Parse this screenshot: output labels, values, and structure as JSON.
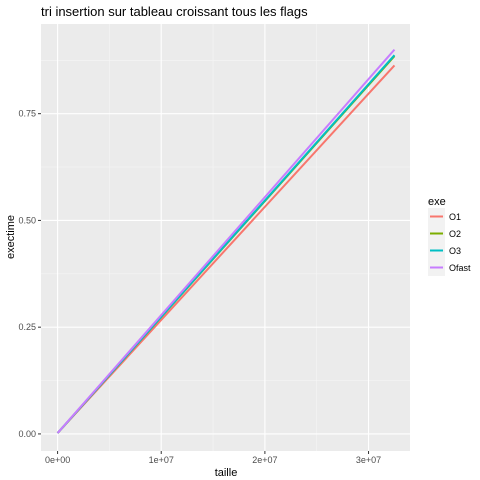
{
  "chart_data": {
    "type": "line",
    "title": "tri insertion sur tableau croissant tous les flags",
    "xlabel": "taille",
    "ylabel": "exectime",
    "xlim": [
      -1600000,
      34000000
    ],
    "ylim": [
      -0.04,
      0.96
    ],
    "x_ticks": [
      0,
      10000000,
      20000000,
      30000000
    ],
    "x_tick_labels": [
      "0e+00",
      "1e+07",
      "2e+07",
      "3e+07"
    ],
    "y_ticks": [
      0,
      0.25,
      0.5,
      0.75
    ],
    "y_tick_labels": [
      "0.00",
      "0.25",
      "0.50",
      "0.75"
    ],
    "grid": true,
    "legend": {
      "title": "exe",
      "position": "right"
    },
    "series": [
      {
        "name": "O1",
        "color": "#F8766D",
        "x": [
          0,
          32500000
        ],
        "y": [
          0.002,
          0.863
        ]
      },
      {
        "name": "O2",
        "color": "#7CAE00",
        "x": [
          0,
          32500000
        ],
        "y": [
          0.002,
          0.885
        ]
      },
      {
        "name": "O3",
        "color": "#00BFC4",
        "x": [
          0,
          32500000
        ],
        "y": [
          0.002,
          0.887
        ]
      },
      {
        "name": "Ofast",
        "color": "#C77CFF",
        "x": [
          0,
          32500000
        ],
        "y": [
          0.002,
          0.9
        ]
      }
    ]
  }
}
